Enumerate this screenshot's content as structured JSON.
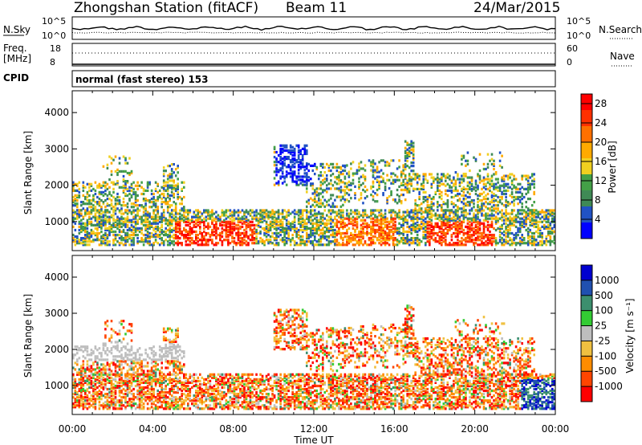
{
  "header": {
    "station": "Zhongshan Station (fitACF)",
    "beam": "Beam 11",
    "date": "24/Mar/2015"
  },
  "top_strips": {
    "nsky_label": "N.Sky",
    "nsearch_label": "N.Search",
    "nsky_ticks": [
      "10^5",
      "10^0"
    ],
    "nsearch_ticks": [
      "10^5",
      "10^0"
    ],
    "freq_label_1": "Freq.",
    "freq_label_2": "[MHz]",
    "freq_ticks": [
      "18",
      "8"
    ],
    "nave_label": "Nave",
    "nave_ticks": [
      "60",
      "0"
    ],
    "cpid_label": "CPID",
    "cpid_text": "normal (fast stereo) 153"
  },
  "colors": {
    "power": [
      "#0000ff",
      "#2152c4",
      "#3f8a55",
      "#43a047",
      "#f0d020",
      "#ffaa00",
      "#ff7000",
      "#ff3000",
      "#ff0000"
    ],
    "velocity": [
      "#0000d0",
      "#2050b0",
      "#3c8f6e",
      "#33cc33",
      "#bebebe",
      "#f0c040",
      "#ff8c00",
      "#ff4500",
      "#ff0000"
    ]
  },
  "chart_data": [
    {
      "type": "heatmap",
      "name": "power",
      "ylabel": "Slant Range [km]",
      "yticks": [
        "1000",
        "2000",
        "3000",
        "4000"
      ],
      "ylim": [
        200,
        4600
      ],
      "xlim": [
        0,
        24
      ],
      "colorbar_label": "Power [dB]",
      "colorbar_ticks": [
        "4",
        "8",
        "12",
        "16",
        "20",
        "24",
        "28"
      ],
      "colorbar_range": [
        0,
        30
      ]
    },
    {
      "type": "heatmap",
      "name": "velocity",
      "ylabel": "Slant Range [km]",
      "yticks": [
        "1000",
        "2000",
        "3000",
        "4000"
      ],
      "ylim": [
        200,
        4600
      ],
      "xlim": [
        0,
        24
      ],
      "xticks": [
        "00:00",
        "04:00",
        "08:00",
        "12:00",
        "16:00",
        "20:00",
        "00:00"
      ],
      "xlabel": "Time UT",
      "colorbar_label": "Velocity [m s⁻¹]",
      "colorbar_ticks": [
        "1000",
        "500",
        "100",
        "25",
        "-25",
        "-100",
        "-500",
        "-1000"
      ]
    }
  ]
}
